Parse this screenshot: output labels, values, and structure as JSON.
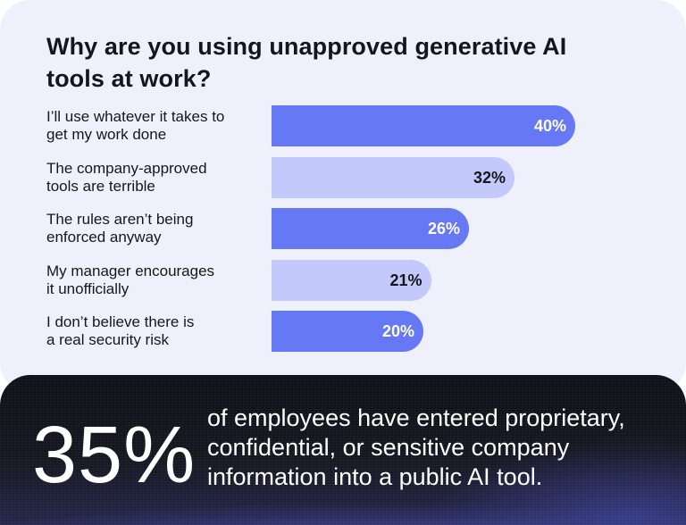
{
  "chart_data": {
    "type": "bar",
    "orientation": "horizontal",
    "title": "Why are you using unapproved generative AI tools at work?",
    "categories": [
      "I’ll use whatever it takes to get my work done",
      "The company-approved tools are terrible",
      "The rules aren’t being enforced anyway",
      "My manager encourages it unofficially",
      "I don’t believe there is a real security risk"
    ],
    "label_lines": [
      [
        "I’ll use whatever it takes to",
        "get my work done"
      ],
      [
        "The company-approved",
        "tools are terrible"
      ],
      [
        "The rules aren’t being",
        "enforced anyway"
      ],
      [
        "My manager encourages",
        "it unofficially"
      ],
      [
        "I don’t believe there is",
        "a real security risk"
      ]
    ],
    "values": [
      40,
      32,
      26,
      21,
      20
    ],
    "value_labels": [
      "40%",
      "32%",
      "26%",
      "21%",
      "20%"
    ],
    "xlim": [
      0,
      100
    ],
    "grid": false,
    "colors": {
      "bar_dark": "#6678f4",
      "bar_light": "#c3c9fb",
      "label_on_dark": "#ffffff",
      "label_on_light": "#15161c"
    }
  },
  "stat": {
    "value": "35%",
    "text": "of employees have entered proprietary, confidential, or sensitive company information into a public AI tool."
  }
}
